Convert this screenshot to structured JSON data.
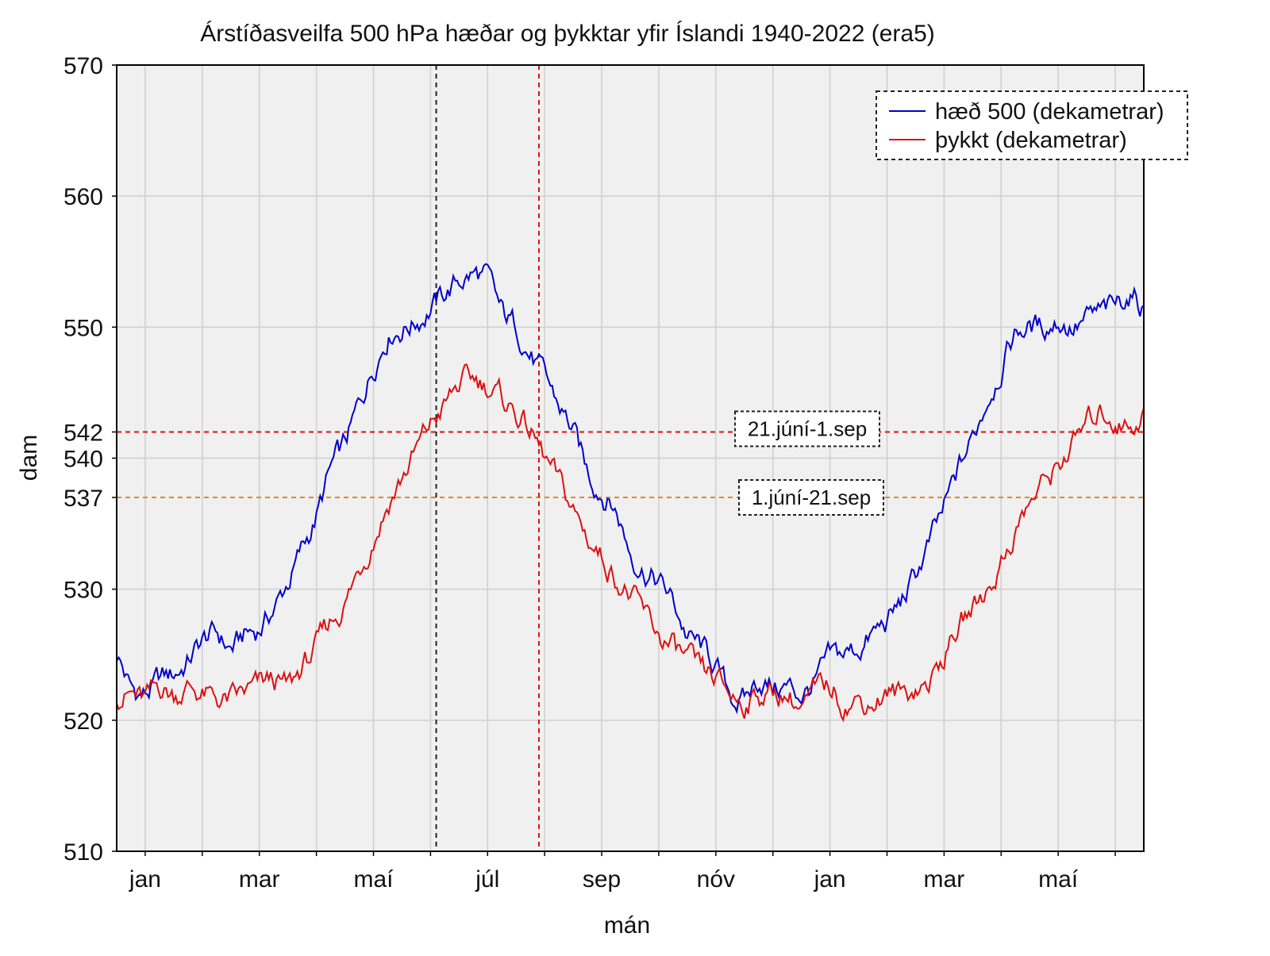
{
  "chart_data": {
    "type": "line",
    "title": "Árstíðasveilfa 500 hPa hæðar og þykktar yfir Íslandi 1940-2022 (era5)",
    "xlabel": "mán",
    "ylabel": "dam",
    "ylim": [
      510,
      570
    ],
    "xlim": [
      0,
      18
    ],
    "y_ticks": [
      510,
      520,
      530,
      537,
      540,
      542,
      550,
      560,
      570
    ],
    "x_tick_labels": [
      {
        "x": 0.5,
        "label": "jan"
      },
      {
        "x": 2.5,
        "label": "mar"
      },
      {
        "x": 4.5,
        "label": "maí"
      },
      {
        "x": 6.5,
        "label": "júl"
      },
      {
        "x": 8.5,
        "label": "sep"
      },
      {
        "x": 10.5,
        "label": "nóv"
      },
      {
        "x": 12.5,
        "label": "jan"
      },
      {
        "x": 14.5,
        "label": "mar"
      },
      {
        "x": 16.5,
        "label": "maí"
      }
    ],
    "grid": true,
    "legend_position": "top-right",
    "series": [
      {
        "name": "hæð 500 (dekametrar)",
        "color": "#0000cc",
        "x": [
          0.0,
          0.25,
          0.5,
          0.75,
          1.0,
          1.25,
          1.5,
          1.75,
          2.0,
          2.25,
          2.5,
          2.75,
          3.0,
          3.25,
          3.5,
          3.75,
          4.0,
          4.25,
          4.5,
          4.75,
          5.0,
          5.25,
          5.5,
          5.75,
          6.0,
          6.25,
          6.5,
          6.75,
          7.0,
          7.25,
          7.5,
          7.75,
          8.0,
          8.25,
          8.5,
          8.75,
          9.0,
          9.25,
          9.5,
          9.75,
          10.0,
          10.25,
          10.5,
          10.75,
          11.0,
          11.25,
          11.5,
          11.75,
          12.0,
          12.25,
          12.5,
          12.75,
          13.0,
          13.25,
          13.5,
          13.75,
          14.0,
          14.25,
          14.5,
          14.75,
          15.0,
          15.25,
          15.5,
          15.75,
          16.0,
          16.25,
          16.5,
          16.75,
          17.0,
          17.25,
          17.5,
          17.75,
          18.0
        ],
        "values": [
          525.0,
          522.5,
          522.0,
          523.0,
          523.5,
          524.5,
          526.0,
          526.5,
          525.5,
          526.5,
          527.0,
          528.5,
          530.5,
          533.0,
          535.5,
          539.0,
          541.0,
          544.0,
          547.0,
          549.5,
          550.0,
          550.5,
          551.5,
          552.5,
          553.5,
          554.0,
          553.5,
          551.0,
          550.0,
          548.0,
          546.0,
          544.0,
          542.0,
          539.0,
          537.5,
          536.0,
          533.0,
          531.5,
          530.5,
          529.0,
          526.5,
          525.5,
          524.0,
          522.0,
          521.5,
          523.0,
          522.5,
          522.5,
          522.0,
          523.0,
          524.5,
          525.0,
          525.5,
          526.5,
          527.5,
          529.0,
          531.0,
          533.5,
          536.0,
          539.0,
          541.5,
          544.5,
          547.0,
          549.5,
          550.0,
          550.0,
          550.5,
          550.0,
          550.5,
          551.0,
          551.5,
          552.5,
          551.5
        ]
      },
      {
        "name": "þykkt (dekametrar)",
        "color": "#dd1111",
        "x": [
          0.0,
          0.25,
          0.5,
          0.75,
          1.0,
          1.25,
          1.5,
          1.75,
          2.0,
          2.25,
          2.5,
          2.75,
          3.0,
          3.25,
          3.5,
          3.75,
          4.0,
          4.25,
          4.5,
          4.75,
          5.0,
          5.25,
          5.5,
          5.75,
          6.0,
          6.25,
          6.5,
          6.75,
          7.0,
          7.25,
          7.5,
          7.75,
          8.0,
          8.25,
          8.5,
          8.75,
          9.0,
          9.25,
          9.5,
          9.75,
          10.0,
          10.25,
          10.5,
          10.75,
          11.0,
          11.25,
          11.5,
          11.75,
          12.0,
          12.25,
          12.5,
          12.75,
          13.0,
          13.25,
          13.5,
          13.75,
          14.0,
          14.25,
          14.5,
          14.75,
          15.0,
          15.25,
          15.5,
          15.75,
          16.0,
          16.25,
          16.5,
          16.75,
          17.0,
          17.25,
          17.5,
          17.75,
          18.0
        ],
        "values": [
          522.0,
          522.0,
          521.5,
          522.5,
          522.0,
          522.5,
          522.0,
          521.5,
          521.5,
          522.0,
          522.5,
          523.0,
          522.5,
          524.0,
          525.5,
          527.5,
          529.0,
          531.5,
          534.0,
          536.5,
          538.5,
          540.5,
          542.5,
          544.0,
          545.5,
          546.0,
          545.5,
          544.5,
          543.5,
          542.0,
          540.0,
          538.0,
          536.0,
          534.0,
          532.5,
          531.0,
          529.5,
          528.0,
          526.5,
          525.5,
          524.5,
          523.5,
          523.0,
          522.0,
          521.5,
          522.0,
          522.0,
          522.0,
          521.0,
          522.0,
          522.5,
          521.5,
          521.5,
          521.5,
          522.0,
          522.0,
          522.5,
          523.0,
          525.0,
          527.0,
          528.5,
          530.0,
          532.0,
          534.5,
          536.5,
          538.0,
          539.5,
          541.0,
          542.5,
          543.5,
          543.0,
          542.5,
          543.5
        ]
      }
    ],
    "reference_lines": [
      {
        "orientation": "horizontal",
        "y": 542,
        "color": "#dd1111",
        "label": "21.júní-1.sep"
      },
      {
        "orientation": "horizontal",
        "y": 537,
        "color": "#e08a1e",
        "label": "1.júní-21.sep"
      },
      {
        "orientation": "vertical",
        "x": 5.6,
        "color": "#222222",
        "label": ""
      },
      {
        "orientation": "vertical",
        "x": 7.4,
        "color": "#dd1111",
        "label": ""
      }
    ],
    "x_gridlines": [
      0.5,
      1.5,
      2.5,
      3.5,
      4.5,
      5.5,
      6.5,
      7.5,
      8.5,
      9.5,
      10.5,
      11.5,
      12.5,
      13.5,
      14.5,
      15.5,
      16.5,
      17.5
    ],
    "plot_background": "#f0f0f0",
    "grid_color": "#cfcfcf"
  }
}
